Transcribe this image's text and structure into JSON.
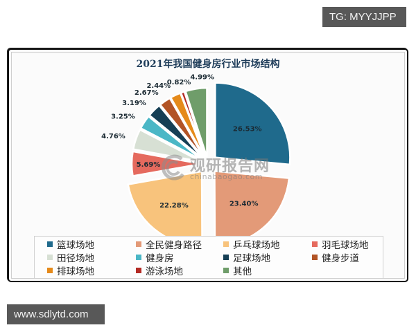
{
  "overlay": {
    "top_tag": "TG: MYYJJPP",
    "bottom_tag": "www.sdlytd.com"
  },
  "watermark": {
    "cn": "观研报告网",
    "en": "chinabaogao.com"
  },
  "chart_data": {
    "type": "pie",
    "title": "2021年我国健身房行业市场结构",
    "categories": [
      "篮球场地",
      "全民健身路径",
      "乒乓球场地",
      "羽毛球场地",
      "田径场地",
      "健身房",
      "足球场地",
      "健身步道",
      "排球场地",
      "游泳场地",
      "其他"
    ],
    "values": [
      26.53,
      23.4,
      22.28,
      5.69,
      4.76,
      3.25,
      3.19,
      2.67,
      2.44,
      0.82,
      4.99
    ],
    "labels": [
      "26.53%",
      "23.40%",
      "22.28%",
      "5.69%",
      "4.76%",
      "3.25%",
      "3.19%",
      "2.67%",
      "2.44%",
      "0.82%",
      "4.99%"
    ],
    "colors": [
      "#1f6a8c",
      "#e39a78",
      "#f8c37c",
      "#e56a5e",
      "#d7e0d4",
      "#4bb7c6",
      "#163f55",
      "#b25426",
      "#e58a1a",
      "#b32a24",
      "#6f9d6a"
    ],
    "legend_position": "bottom",
    "start_angle_deg": 0,
    "direction": "clockwise"
  },
  "legend": {
    "items": [
      {
        "label": "篮球场地",
        "color": "#1f6a8c"
      },
      {
        "label": "全民健身路径",
        "color": "#e39a78"
      },
      {
        "label": "乒乓球场地",
        "color": "#f8c37c"
      },
      {
        "label": "羽毛球场地",
        "color": "#e56a5e"
      },
      {
        "label": "田径场地",
        "color": "#d7e0d4"
      },
      {
        "label": "健身房",
        "color": "#4bb7c6"
      },
      {
        "label": "足球场地",
        "color": "#163f55"
      },
      {
        "label": "健身步道",
        "color": "#b25426"
      },
      {
        "label": "排球场地",
        "color": "#e58a1a"
      },
      {
        "label": "游泳场地",
        "color": "#b32a24"
      },
      {
        "label": "其他",
        "color": "#6f9d6a"
      }
    ]
  }
}
